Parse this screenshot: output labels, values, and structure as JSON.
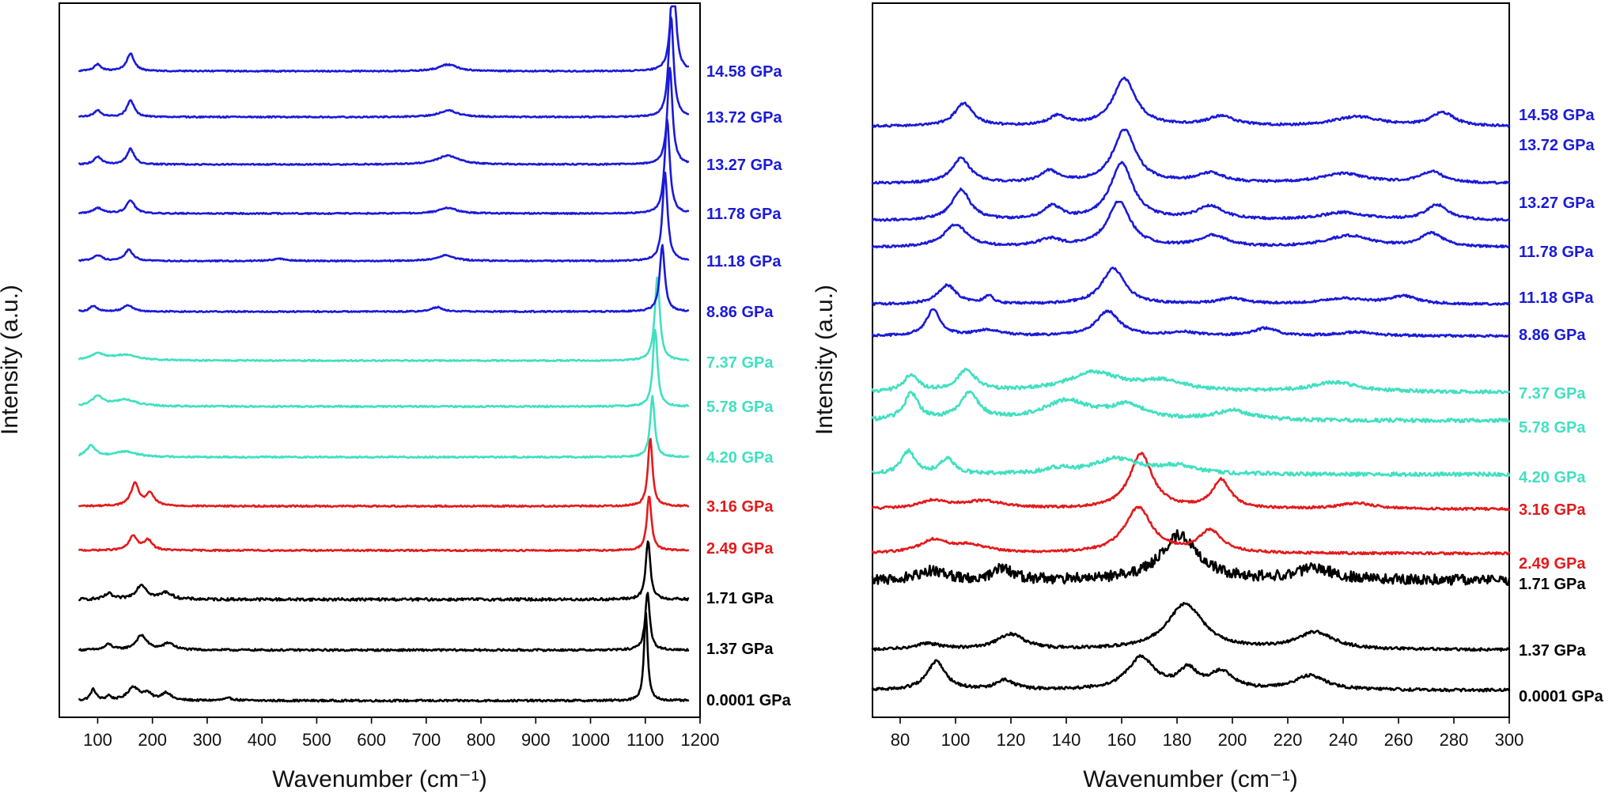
{
  "colors": {
    "ambient": "#000000",
    "phase2": "#e31a1c",
    "phase3": "#40e0c0",
    "phase4": "#1a1ad8"
  },
  "chart_data": [
    {
      "type": "line",
      "panel": "left",
      "xlabel": "Wavenumber (cm⁻¹)",
      "ylabel": "Intensity (a.u.)",
      "xlim": [
        30,
        1200
      ],
      "xticks": [
        100,
        200,
        300,
        400,
        500,
        600,
        700,
        800,
        900,
        1000,
        1100,
        1200
      ],
      "xtick_labels": [
        "100",
        "200",
        "300",
        "400",
        "500",
        "600",
        "700",
        "800",
        "900",
        "1000",
        "1100",
        "1200"
      ],
      "main_peak": [
        {
          "pressure": "0.0001 GPa",
          "x": 1101
        },
        {
          "pressure": "1.37 GPa",
          "x": 1104
        },
        {
          "pressure": "1.71 GPa",
          "x": 1105
        },
        {
          "pressure": "2.49 GPa",
          "x": 1107
        },
        {
          "pressure": "3.16 GPa",
          "x": 1109
        },
        {
          "pressure": "4.20 GPa",
          "x": 1113
        },
        {
          "pressure": "5.78 GPa",
          "x": 1118
        },
        {
          "pressure": "7.37 GPa",
          "x": 1122
        },
        {
          "pressure": "8.86 GPa",
          "x": 1131
        },
        {
          "pressure": "11.18 GPa",
          "x": 1136
        },
        {
          "pressure": "11.78 GPa",
          "x": 1140
        },
        {
          "pressure": "13.27 GPa",
          "x": 1145
        },
        {
          "pressure": "13.72 GPa",
          "x": 1147
        },
        {
          "pressure": "14.58 GPa",
          "x": 1151
        }
      ],
      "series": [
        {
          "name": "0.0001 GPa",
          "color": "ambient",
          "baseline": 0.0,
          "peaks": [
            [
              1101,
              8.0,
              4.0
            ],
            [
              92,
              1.0,
              6
            ],
            [
              120,
              0.4,
              5
            ],
            [
              165,
              1.2,
              12
            ],
            [
              190,
              0.6,
              10
            ],
            [
              225,
              0.7,
              10
            ],
            [
              340,
              0.2,
              12
            ]
          ],
          "noise": 0.09
        },
        {
          "name": "1.37 GPa",
          "color": "ambient",
          "baseline": 0.0,
          "peaks": [
            [
              1104,
              5.2,
              5.0
            ],
            [
              120,
              0.5,
              8
            ],
            [
              180,
              1.3,
              12
            ],
            [
              230,
              0.6,
              12
            ]
          ],
          "noise": 0.09
        },
        {
          "name": "1.71 GPa",
          "color": "ambient",
          "baseline": 0.0,
          "peaks": [
            [
              1105,
              5.3,
              5.0
            ],
            [
              120,
              0.5,
              8
            ],
            [
              180,
              1.3,
              12
            ],
            [
              225,
              0.6,
              12
            ]
          ],
          "noise": 0.12
        },
        {
          "name": "2.49 GPa",
          "color": "phase2",
          "baseline": 0.0,
          "peaks": [
            [
              1107,
              5.0,
              5.0
            ],
            [
              165,
              1.3,
              9
            ],
            [
              192,
              0.9,
              9
            ]
          ],
          "noise": 0.07
        },
        {
          "name": "3.16 GPa",
          "color": "phase2",
          "baseline": 0.0,
          "peaks": [
            [
              1109,
              6.2,
              5.0
            ],
            [
              168,
              2.0,
              9
            ],
            [
              196,
              1.1,
              9
            ]
          ],
          "noise": 0.07
        },
        {
          "name": "4.20 GPa",
          "color": "phase3",
          "baseline": 0.0,
          "peaks": [
            [
              1113,
              5.5,
              5.0
            ],
            [
              88,
              1.0,
              10
            ],
            [
              150,
              0.5,
              25
            ]
          ],
          "noise": 0.07
        },
        {
          "name": "5.78 GPa",
          "color": "phase3",
          "baseline": 0.0,
          "peaks": [
            [
              1118,
              7.0,
              5.0
            ],
            [
              100,
              0.9,
              12
            ],
            [
              150,
              0.6,
              25
            ]
          ],
          "noise": 0.07
        },
        {
          "name": "7.37 GPa",
          "color": "phase3",
          "baseline": 0.0,
          "peaks": [
            [
              1122,
              7.6,
              5.5
            ],
            [
              100,
              0.6,
              15
            ],
            [
              150,
              0.5,
              28
            ]
          ],
          "noise": 0.06
        },
        {
          "name": "8.86 GPa",
          "color": "phase4",
          "baseline": 0.0,
          "peaks": [
            [
              1131,
              6.0,
              5.5
            ],
            [
              92,
              0.5,
              8
            ],
            [
              155,
              0.6,
              10
            ],
            [
              720,
              0.4,
              12
            ]
          ],
          "noise": 0.06
        },
        {
          "name": "11.18 GPa",
          "color": "phase4",
          "baseline": 0.0,
          "peaks": [
            [
              1136,
              8.0,
              5.5
            ],
            [
              100,
              0.5,
              10
            ],
            [
              157,
              1.0,
              9
            ],
            [
              430,
              0.2,
              15
            ],
            [
              735,
              0.5,
              20
            ]
          ],
          "noise": 0.06
        },
        {
          "name": "11.78 GPa",
          "color": "phase4",
          "baseline": 0.0,
          "peaks": [
            [
              1140,
              8.5,
              5.5
            ],
            [
              100,
              0.5,
              10
            ],
            [
              160,
              1.2,
              9
            ],
            [
              740,
              0.5,
              20
            ]
          ],
          "noise": 0.06
        },
        {
          "name": "13.27 GPa",
          "color": "phase4",
          "baseline": 0.0,
          "peaks": [
            [
              1145,
              8.8,
              5.5
            ],
            [
              100,
              0.7,
              8
            ],
            [
              160,
              1.4,
              8
            ],
            [
              740,
              0.8,
              25
            ]
          ],
          "noise": 0.06
        },
        {
          "name": "13.72 GPa",
          "color": "phase4",
          "baseline": 0.0,
          "peaks": [
            [
              1147,
              9.2,
              5.5
            ],
            [
              100,
              0.6,
              8
            ],
            [
              160,
              1.5,
              8
            ],
            [
              740,
              0.6,
              20
            ]
          ],
          "noise": 0.06
        },
        {
          "name": "14.58 GPa",
          "color": "phase4",
          "baseline": 0.0,
          "peaks": [
            [
              1151,
              9.5,
              5.5
            ],
            [
              100,
              0.6,
              8
            ],
            [
              160,
              1.6,
              8
            ],
            [
              740,
              0.6,
              20
            ]
          ],
          "noise": 0.06
        }
      ]
    },
    {
      "type": "line",
      "panel": "right",
      "xlabel": "Wavenumber (cm⁻¹)",
      "ylabel": "Intensity (a.u.)",
      "xlim": [
        70,
        300
      ],
      "xticks": [
        80,
        100,
        120,
        140,
        160,
        180,
        200,
        220,
        240,
        260,
        280,
        300
      ],
      "xtick_labels": [
        "80",
        "100",
        "120",
        "140",
        "160",
        "180",
        "200",
        "220",
        "240",
        "260",
        "280",
        "300"
      ],
      "series": [
        {
          "name": "0.0001 GPa",
          "color": "ambient",
          "peaks": [
            [
              93,
              3.0,
              4
            ],
            [
              118,
              1.0,
              4
            ],
            [
              167,
              3.4,
              6
            ],
            [
              184,
              2.0,
              4
            ],
            [
              196,
              1.8,
              5
            ],
            [
              228,
              1.5,
              7
            ]
          ],
          "noise": 0.15
        },
        {
          "name": "1.37 GPa",
          "color": "ambient",
          "peaks": [
            [
              90,
              0.6,
              6
            ],
            [
              120,
              1.6,
              6
            ],
            [
              183,
              4.8,
              8
            ],
            [
              230,
              1.8,
              8
            ]
          ],
          "noise": 0.15
        },
        {
          "name": "1.71 GPa",
          "color": "ambient",
          "peaks": [
            [
              92,
              1.0,
              6
            ],
            [
              117,
              1.2,
              4
            ],
            [
              181,
              4.8,
              8
            ],
            [
              230,
              1.2,
              8
            ]
          ],
          "noise": 0.55
        },
        {
          "name": "2.49 GPa",
          "color": "phase2",
          "peaks": [
            [
              92,
              1.3,
              6
            ],
            [
              105,
              0.8,
              8
            ],
            [
              166,
              4.8,
              6
            ],
            [
              192,
              2.3,
              5
            ]
          ],
          "noise": 0.12
        },
        {
          "name": "3.16 GPa",
          "color": "phase2",
          "peaks": [
            [
              92,
              0.8,
              6
            ],
            [
              110,
              0.8,
              10
            ],
            [
              167,
              5.8,
              5
            ],
            [
              196,
              3.0,
              4
            ],
            [
              245,
              0.6,
              8
            ]
          ],
          "noise": 0.12
        },
        {
          "name": "4.20 GPa",
          "color": "phase3",
          "peaks": [
            [
              83,
              2.4,
              3
            ],
            [
              97,
              1.6,
              3
            ],
            [
              137,
              0.5,
              6
            ],
            [
              158,
              1.6,
              10
            ],
            [
              180,
              0.8,
              8
            ]
          ],
          "noise": 0.2
        },
        {
          "name": "5.78 GPa",
          "color": "phase3",
          "peaks": [
            [
              84,
              2.8,
              3
            ],
            [
              105,
              2.8,
              4
            ],
            [
              140,
              2.0,
              10
            ],
            [
              162,
              1.5,
              8
            ],
            [
              200,
              1.0,
              8
            ]
          ],
          "noise": 0.2
        },
        {
          "name": "7.37 GPa",
          "color": "phase3",
          "peaks": [
            [
              84,
              1.8,
              3
            ],
            [
              104,
              2.2,
              4
            ],
            [
              150,
              2.0,
              12
            ],
            [
              175,
              1.0,
              10
            ],
            [
              237,
              1.0,
              10
            ]
          ],
          "noise": 0.18
        },
        {
          "name": "8.86 GPa",
          "color": "phase4",
          "peaks": [
            [
              92,
              2.8,
              3
            ],
            [
              112,
              0.6,
              6
            ],
            [
              155,
              2.6,
              5
            ],
            [
              182,
              0.4,
              6
            ],
            [
              212,
              0.8,
              5
            ],
            [
              245,
              0.4,
              8
            ]
          ],
          "noise": 0.12
        },
        {
          "name": "11.18 GPa",
          "color": "phase4",
          "peaks": [
            [
              97,
              2.0,
              4
            ],
            [
              112,
              0.8,
              2
            ],
            [
              157,
              3.8,
              5
            ],
            [
              200,
              0.6,
              6
            ],
            [
              240,
              0.6,
              10
            ],
            [
              262,
              0.8,
              6
            ]
          ],
          "noise": 0.12
        },
        {
          "name": "11.78 GPa",
          "color": "phase4",
          "peaks": [
            [
              100,
              2.4,
              5
            ],
            [
              134,
              0.8,
              5
            ],
            [
              159,
              4.8,
              5
            ],
            [
              193,
              1.2,
              6
            ],
            [
              242,
              1.2,
              10
            ],
            [
              272,
              1.4,
              5
            ]
          ],
          "noise": 0.12
        },
        {
          "name": "13.27 GPa",
          "color": "phase4",
          "peaks": [
            [
              102,
              3.2,
              4
            ],
            [
              135,
              1.4,
              4
            ],
            [
              160,
              6.0,
              5
            ],
            [
              192,
              1.4,
              6
            ],
            [
              240,
              0.8,
              10
            ],
            [
              274,
              1.6,
              5
            ]
          ],
          "noise": 0.12
        },
        {
          "name": "13.72 GPa",
          "color": "phase4",
          "peaks": [
            [
              102,
              2.6,
              4
            ],
            [
              134,
              1.2,
              4
            ],
            [
              161,
              5.6,
              5
            ],
            [
              192,
              1.0,
              6
            ],
            [
              240,
              1.0,
              10
            ],
            [
              272,
              1.2,
              5
            ]
          ],
          "noise": 0.12
        },
        {
          "name": "14.58 GPa",
          "color": "phase4",
          "peaks": [
            [
              103,
              2.4,
              4
            ],
            [
              137,
              1.0,
              4
            ],
            [
              161,
              5.0,
              5
            ],
            [
              196,
              1.0,
              6
            ],
            [
              245,
              1.0,
              10
            ],
            [
              276,
              1.4,
              5
            ]
          ],
          "noise": 0.12
        }
      ]
    }
  ]
}
